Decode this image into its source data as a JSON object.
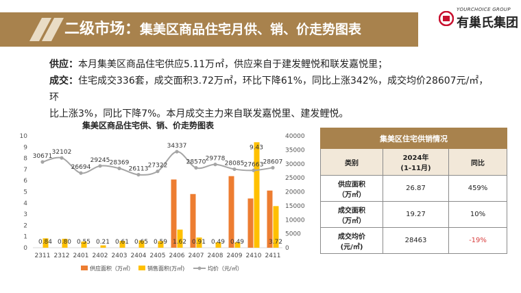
{
  "header": {
    "title_main": "二级市场：",
    "title_sub": "集美区商品住宅月供、销、价走势图表"
  },
  "logo": {
    "en": "YOURCHOICE GROUP",
    "cn": "有巢氏集团"
  },
  "text": {
    "supply_label": "供应：",
    "supply_body": "本月集美区商品住宅供应5.11万㎡，供应来自于建发鲤悦和联发嘉悦里；",
    "deal_label": "成交：",
    "deal_body_line1": "住宅成交336套，成交面积3.72万㎡，环比下降61%，同比上涨342%，成交均价28607元/㎡，环",
    "deal_body_line2": "比上涨3%，同比下降7%。本月成交主力来自联发嘉悦里、建发鲤悦。"
  },
  "chart_data": {
    "type": "bar",
    "title": "集美区商品住宅供、销、价走势图表",
    "categories": [
      "2311",
      "2312",
      "2401",
      "2402",
      "2403",
      "2404",
      "2405",
      "2406",
      "2407",
      "2408",
      "2409",
      "2410",
      "2411"
    ],
    "series": [
      {
        "name": "供应面积（万㎡）",
        "axis": "left",
        "color": "#ed7d31",
        "values": [
          0,
          0,
          0,
          0,
          0,
          0,
          0,
          6.1,
          4.8,
          0,
          6.4,
          4.4,
          5.11
        ]
      },
      {
        "name": "销售面积(万㎡)",
        "axis": "left",
        "color": "#ffc000",
        "values": [
          0.84,
          0.8,
          0.55,
          0.21,
          0.61,
          0.65,
          0.59,
          1.62,
          0.91,
          0.49,
          0.49,
          9.43,
          3.72
        ],
        "labels": [
          "0.84",
          "0.80",
          "0.55",
          "0.21",
          "0.61",
          "0.65",
          "0.59",
          "1.62",
          "0.91",
          "0.49",
          "0.49",
          "9.43",
          "3.72"
        ]
      },
      {
        "name": "均价（元/㎡）",
        "axis": "right",
        "type": "line",
        "color": "#a5a5a5",
        "values": [
          30671,
          32102,
          26694,
          29245,
          28369,
          26113,
          27322,
          34337,
          28570,
          29778,
          28085,
          27663,
          28607
        ]
      }
    ],
    "ylim_left": [
      0,
      10
    ],
    "yticks_left": [
      "0",
      "1",
      "2",
      "3",
      "4",
      "5",
      "6",
      "7",
      "8",
      "9",
      "10"
    ],
    "ylim_right": [
      0,
      40000
    ],
    "yticks_right": [
      "0",
      "5000",
      "10000",
      "15000",
      "20000",
      "25000",
      "30000",
      "35000",
      "40000"
    ],
    "legend_position": "bottom",
    "legend": [
      "供应面积（万㎡）",
      "销售面积(万㎡)",
      "均价（元/㎡）"
    ]
  },
  "table": {
    "caption": "集美区住宅供销情况",
    "headers": [
      "类别",
      "2024年\n(1-11月)",
      "同比"
    ],
    "rows": [
      {
        "label": "供应面积\n（万㎡）",
        "value": "26.87",
        "yoy": "459%"
      },
      {
        "label": "成交面积\n（万㎡）",
        "value": "19.27",
        "yoy": "10%"
      },
      {
        "label": "成交均价\n(元/㎡)",
        "value": "28463",
        "yoy": "-19%"
      }
    ],
    "negative_color": "#d83c3c"
  }
}
